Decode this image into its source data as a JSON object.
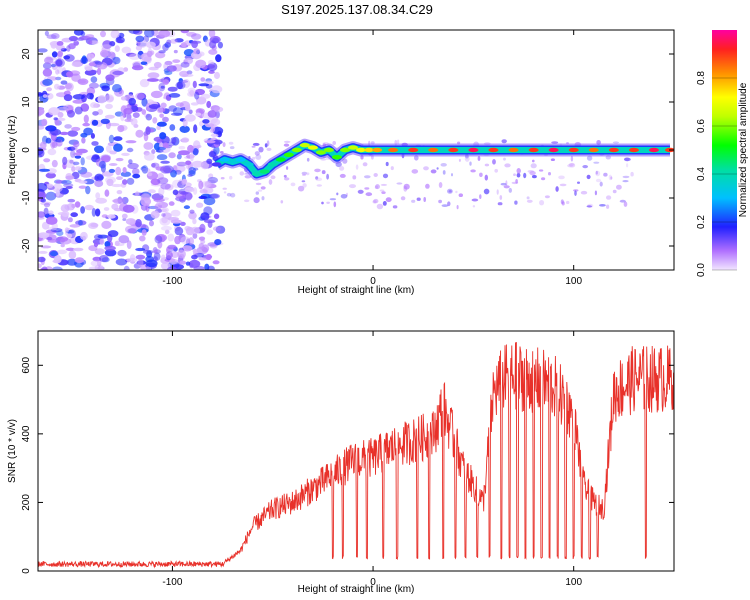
{
  "chart_data": [
    {
      "type": "heatmap",
      "title": "S197.2025.137.08.34.C29",
      "xlabel": "Height of straight line (km)",
      "ylabel": "Frequency (Hz)",
      "xlim": [
        -167,
        150
      ],
      "ylim": [
        -25,
        25
      ],
      "x_ticks": [
        -100,
        0,
        100
      ],
      "y_ticks": [
        -20,
        -10,
        0,
        10,
        20
      ],
      "colorbar": {
        "label": "Normalized spectral amplitude",
        "range": [
          0,
          1
        ],
        "ticks": [
          0,
          0.2,
          0.4,
          0.6,
          0.8
        ],
        "tick_labels": [
          "0.0",
          "0.2",
          "0.4",
          "0.6",
          "0.8"
        ]
      },
      "noise_region_x": [
        -167,
        -76
      ],
      "ridge": {
        "x": [
          -78,
          -74,
          -70,
          -66,
          -62,
          -58,
          -54,
          -50,
          -46,
          -42,
          -38,
          -34,
          -30,
          -26,
          -22,
          -18,
          -14,
          -10,
          -6,
          -2,
          2,
          10,
          20,
          30,
          40,
          50,
          60,
          70,
          80,
          90,
          100,
          110,
          120,
          130,
          140,
          148
        ],
        "freq": [
          -3,
          -2,
          -2.5,
          -2,
          -3,
          -5,
          -4.5,
          -3,
          -2,
          -1,
          0,
          1,
          0.5,
          -0.5,
          0,
          -1.5,
          0,
          0.5,
          0,
          0,
          0,
          0,
          0,
          0,
          0,
          0,
          0,
          0,
          0,
          0,
          0,
          0,
          0,
          0,
          0,
          0
        ],
        "amplitude": [
          0.15,
          0.3,
          0.35,
          0.3,
          0.35,
          0.4,
          0.45,
          0.4,
          0.5,
          0.55,
          0.6,
          0.65,
          0.7,
          0.6,
          0.6,
          0.55,
          0.6,
          0.65,
          0.7,
          0.75,
          0.8,
          0.85,
          0.9,
          0.85,
          0.9,
          0.95,
          0.9,
          0.85,
          0.9,
          0.95,
          0.9,
          0.85,
          0.9,
          0.9,
          0.95,
          0.9
        ]
      }
    },
    {
      "type": "line",
      "xlabel": "Height of straight line (km)",
      "ylabel": "SNR (10 * v/v)",
      "xlim": [
        -167,
        150
      ],
      "ylim": [
        0,
        700
      ],
      "x_ticks": [
        -100,
        0,
        100
      ],
      "y_ticks": [
        0,
        200,
        400,
        600
      ],
      "color": "#e8312a",
      "envelope": {
        "x": [
          -167,
          -75,
          -66,
          -60,
          -50,
          -40,
          -30,
          -20,
          -10,
          0,
          10,
          20,
          30,
          35,
          40,
          45,
          50,
          55,
          60,
          65,
          70,
          80,
          90,
          95,
          100,
          105,
          110,
          115,
          120,
          125,
          130,
          140,
          150
        ],
        "y": [
          20,
          20,
          60,
          130,
          180,
          200,
          240,
          280,
          320,
          330,
          360,
          380,
          400,
          480,
          390,
          300,
          250,
          200,
          520,
          560,
          570,
          560,
          540,
          500,
          450,
          250,
          200,
          180,
          520,
          540,
          560,
          560,
          560
        ]
      },
      "dropouts_x": [
        -20,
        -15,
        -8,
        -3,
        5,
        12,
        22,
        28,
        35,
        41,
        46,
        52,
        58,
        64,
        68,
        72,
        76,
        80,
        84,
        88,
        92,
        96,
        100,
        104,
        108,
        112,
        136
      ],
      "dropout_level": 35
    }
  ]
}
